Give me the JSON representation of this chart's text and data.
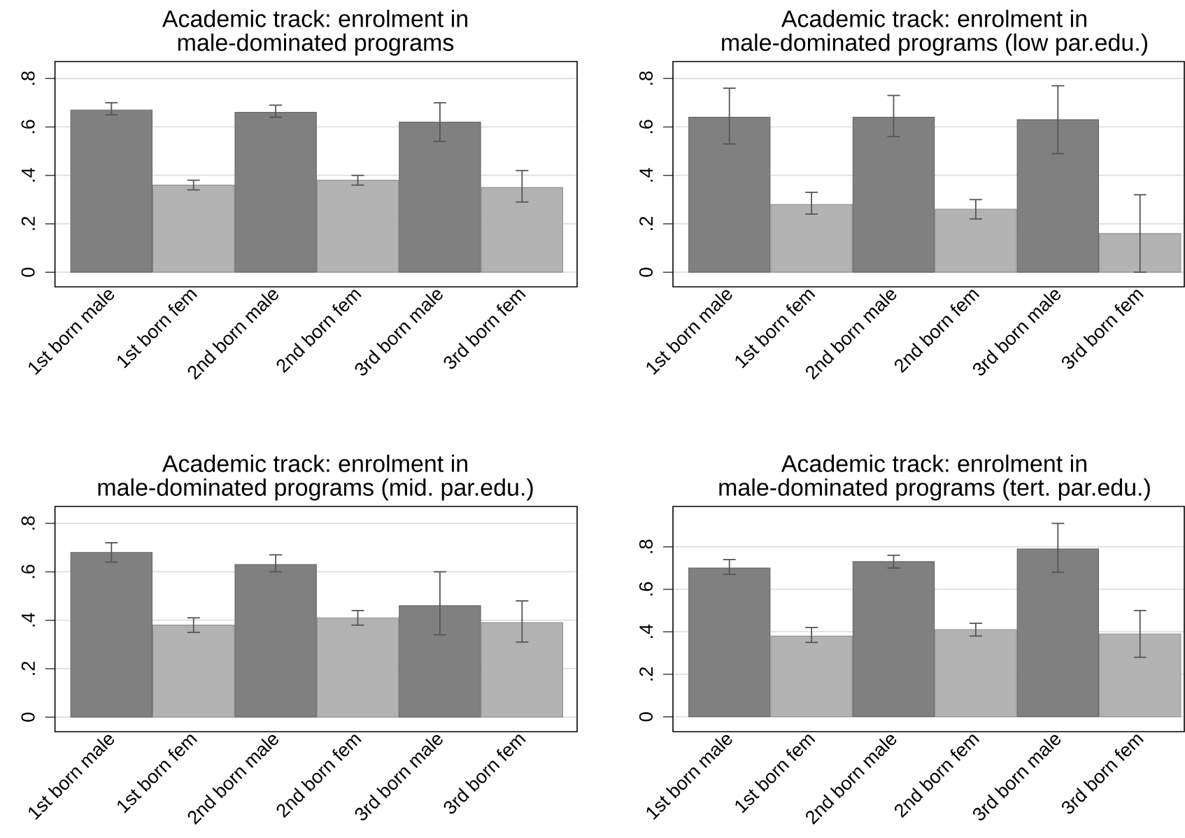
{
  "chart_data": [
    {
      "type": "bar",
      "title": "Academic track: enrolment in male-dominated programs",
      "categories": [
        "1st born male",
        "1st born fem",
        "2nd born male",
        "2nd born fem",
        "3rd born male",
        "3rd born fem"
      ],
      "values": [
        0.67,
        0.36,
        0.66,
        0.38,
        0.62,
        0.35
      ],
      "colors": [
        "#808080",
        "#b3b3b3",
        "#808080",
        "#b3b3b3",
        "#808080",
        "#b3b3b3"
      ],
      "errors": [
        [
          0.65,
          0.7
        ],
        [
          0.34,
          0.38
        ],
        [
          0.64,
          0.69
        ],
        [
          0.36,
          0.4
        ],
        [
          0.54,
          0.7
        ],
        [
          0.29,
          0.42
        ]
      ],
      "ylim": [
        -0.06,
        0.87
      ],
      "yticks": [
        0,
        {
          "value": 0.2,
          "label": ".2"
        },
        {
          "value": 0.4,
          "label": ".4"
        },
        {
          "value": 0.6,
          "label": ".6"
        },
        {
          "value": 0.8,
          "label": ".8"
        }
      ],
      "grid": "y"
    },
    {
      "type": "bar",
      "title": "Academic track: enrolment in male-dominated programs (low par.edu.)",
      "categories": [
        "1st born male",
        "1st born fem",
        "2nd born male",
        "2nd born fem",
        "3rd born male",
        "3rd born fem"
      ],
      "values": [
        0.64,
        0.28,
        0.64,
        0.26,
        0.63,
        0.16
      ],
      "colors": [
        "#808080",
        "#b3b3b3",
        "#808080",
        "#b3b3b3",
        "#808080",
        "#b3b3b3"
      ],
      "errors": [
        [
          0.53,
          0.76
        ],
        [
          0.24,
          0.33
        ],
        [
          0.56,
          0.73
        ],
        [
          0.22,
          0.3
        ],
        [
          0.49,
          0.77
        ],
        [
          0.0,
          0.32
        ]
      ],
      "ylim": [
        -0.06,
        0.87
      ],
      "yticks": [
        0,
        {
          "value": 0.2,
          "label": ".2"
        },
        {
          "value": 0.4,
          "label": ".4"
        },
        {
          "value": 0.6,
          "label": ".6"
        },
        {
          "value": 0.8,
          "label": ".8"
        }
      ],
      "grid": "y"
    },
    {
      "type": "bar",
      "title": "Academic track: enrolment in male-dominated programs (mid. par.edu.)",
      "categories": [
        "1st born male",
        "1st born fem",
        "2nd born male",
        "2nd born fem",
        "3rd born male",
        "3rd born fem"
      ],
      "values": [
        0.68,
        0.38,
        0.63,
        0.41,
        0.46,
        0.39
      ],
      "colors": [
        "#808080",
        "#b3b3b3",
        "#808080",
        "#b3b3b3",
        "#808080",
        "#b3b3b3"
      ],
      "errors": [
        [
          0.64,
          0.72
        ],
        [
          0.35,
          0.41
        ],
        [
          0.6,
          0.67
        ],
        [
          0.38,
          0.44
        ],
        [
          0.34,
          0.6
        ],
        [
          0.31,
          0.48
        ]
      ],
      "ylim": [
        -0.06,
        0.87
      ],
      "yticks": [
        0,
        {
          "value": 0.2,
          "label": ".2"
        },
        {
          "value": 0.4,
          "label": ".4"
        },
        {
          "value": 0.6,
          "label": ".6"
        },
        {
          "value": 0.8,
          "label": ".8"
        }
      ],
      "grid": "y"
    },
    {
      "type": "bar",
      "title": "Academic track: enrolment in male-dominated programs (tert. par.edu.)",
      "categories": [
        "1st born male",
        "1st born fem",
        "2nd born male",
        "2nd born fem",
        "3rd born male",
        "3rd born fem"
      ],
      "values": [
        0.7,
        0.38,
        0.73,
        0.41,
        0.79,
        0.39
      ],
      "colors": [
        "#808080",
        "#b3b3b3",
        "#808080",
        "#b3b3b3",
        "#808080",
        "#b3b3b3"
      ],
      "errors": [
        [
          0.67,
          0.74
        ],
        [
          0.35,
          0.42
        ],
        [
          0.7,
          0.76
        ],
        [
          0.38,
          0.44
        ],
        [
          0.68,
          0.91
        ],
        [
          0.28,
          0.5
        ]
      ],
      "ylim": [
        -0.07,
        0.99
      ],
      "yticks": [
        0,
        {
          "value": 0.2,
          "label": ".2"
        },
        {
          "value": 0.4,
          "label": ".4"
        },
        {
          "value": 0.6,
          "label": ".6"
        },
        {
          "value": 0.8,
          "label": ".8"
        }
      ],
      "grid": "y"
    }
  ]
}
